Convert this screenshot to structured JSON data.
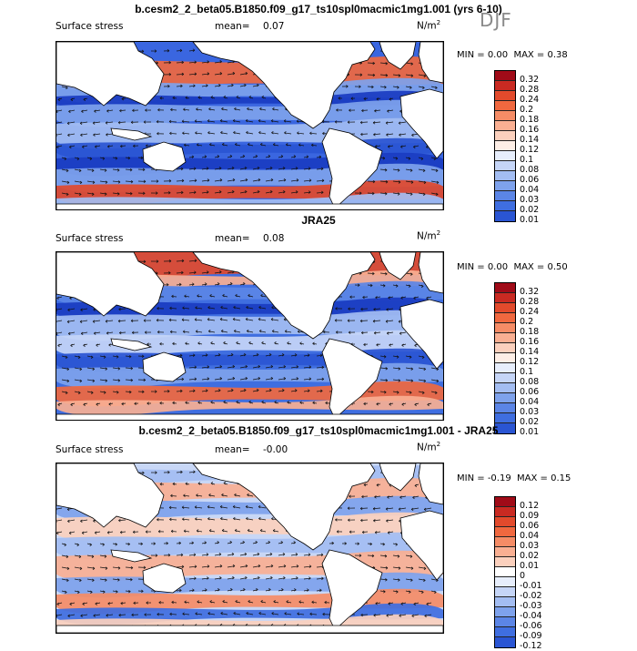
{
  "season_label": "DJF",
  "unit_label": "N/m",
  "unit_sup": "2",
  "palette_positive": [
    "#a00b18",
    "#c92a22",
    "#e24a2c",
    "#f0683f",
    "#f58c66",
    "#f9af92",
    "#fbd0bd",
    "#fdeee6"
  ],
  "palette_negative": [
    "#e7eefc",
    "#c5d5f7",
    "#a3bdf2",
    "#7ea2ec",
    "#5b85e6",
    "#3f6ee0",
    "#2a55d3",
    "#1a3cc1",
    "#122ba6",
    "#0b1c7a"
  ],
  "panels": [
    {
      "title": "b.cesm2_2_beta05.B1850.f09_g17_ts10spl0macmic1mg1.001 (yrs 6-10)",
      "variable": "Surface stress",
      "mean_label": "mean=",
      "mean_value": "0.07",
      "min_label": "MIN =",
      "min_value": "0.00",
      "max_label": "MAX =",
      "max_value": "0.38",
      "colorbar_labels": [
        "0.32",
        "0.28",
        "0.24",
        "0.2",
        "0.18",
        "0.16",
        "0.14",
        "0.12",
        "0.1",
        "0.08",
        "0.06",
        "0.04",
        "0.03",
        "0.02",
        "0.01"
      ]
    },
    {
      "title": "JRA25",
      "variable": "Surface stress",
      "mean_label": "mean=",
      "mean_value": "0.08",
      "min_label": "MIN =",
      "min_value": "0.00",
      "max_label": "MAX =",
      "max_value": "0.50",
      "colorbar_labels": [
        "0.32",
        "0.28",
        "0.24",
        "0.2",
        "0.18",
        "0.16",
        "0.14",
        "0.12",
        "0.1",
        "0.08",
        "0.06",
        "0.04",
        "0.03",
        "0.02",
        "0.01"
      ]
    },
    {
      "title": "b.cesm2_2_beta05.B1850.f09_g17_ts10spl0macmic1mg1.001 - JRA25",
      "variable": "Surface stress",
      "mean_label": "mean=",
      "mean_value": "-0.00",
      "min_label": "MIN =",
      "min_value": "-0.19",
      "max_label": "MAX =",
      "max_value": "0.15",
      "colorbar_labels": [
        "0.12",
        "0.09",
        "0.06",
        "0.04",
        "0.03",
        "0.02",
        "0.01",
        "0",
        "-0.01",
        "-0.02",
        "-0.03",
        "-0.04",
        "-0.06",
        "-0.09",
        "-0.12"
      ]
    }
  ]
}
